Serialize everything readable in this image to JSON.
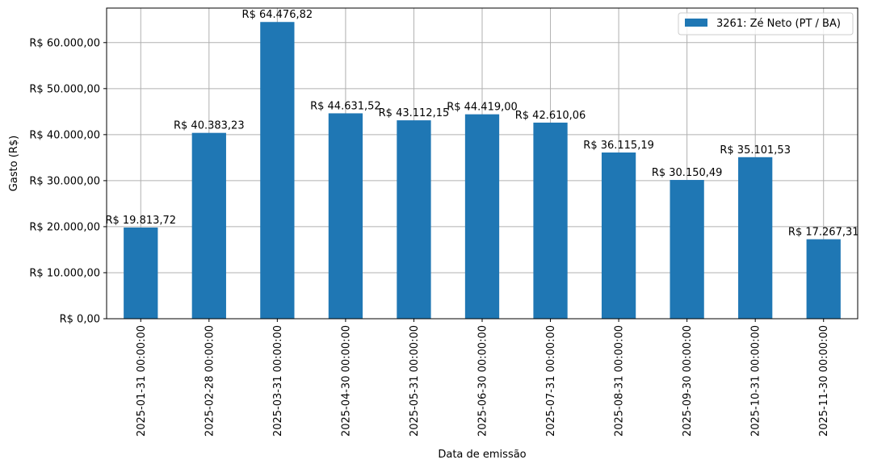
{
  "chart_data": {
    "type": "bar",
    "title": "",
    "xlabel": "Data de emissão",
    "ylabel": "Gasto (R$)",
    "ylim": [
      0,
      67500
    ],
    "grid": true,
    "legend_position": "upper right",
    "categories": [
      "2025-01-31 00:00:00",
      "2025-02-28 00:00:00",
      "2025-03-31 00:00:00",
      "2025-04-30 00:00:00",
      "2025-05-31 00:00:00",
      "2025-06-30 00:00:00",
      "2025-07-31 00:00:00",
      "2025-08-31 00:00:00",
      "2025-09-30 00:00:00",
      "2025-10-31 00:00:00",
      "2025-11-30 00:00:00"
    ],
    "series": [
      {
        "name": "3261: Zé Neto (PT / BA)",
        "color": "#1f77b4",
        "values": [
          19813.72,
          40383.23,
          64476.82,
          44631.52,
          43112.15,
          44419.0,
          42610.06,
          36115.19,
          30150.49,
          35101.53,
          17267.31
        ],
        "data_labels": [
          "R$ 19.813,72",
          "R$ 40.383,23",
          "R$ 64.476,82",
          "R$ 44.631,52",
          "R$ 43.112,15",
          "R$ 44.419,00",
          "R$ 42.610,06",
          "R$ 36.115,19",
          "R$ 30.150,49",
          "R$ 35.101,53",
          "R$ 17.267,31"
        ]
      }
    ],
    "y_ticks": [
      {
        "value": 0,
        "label": "R$ 0,00"
      },
      {
        "value": 10000,
        "label": "R$ 10.000,00"
      },
      {
        "value": 20000,
        "label": "R$ 20.000,00"
      },
      {
        "value": 30000,
        "label": "R$ 30.000,00"
      },
      {
        "value": 40000,
        "label": "R$ 40.000,00"
      },
      {
        "value": 50000,
        "label": "R$ 50.000,00"
      },
      {
        "value": 60000,
        "label": "R$ 60.000,00"
      }
    ]
  }
}
